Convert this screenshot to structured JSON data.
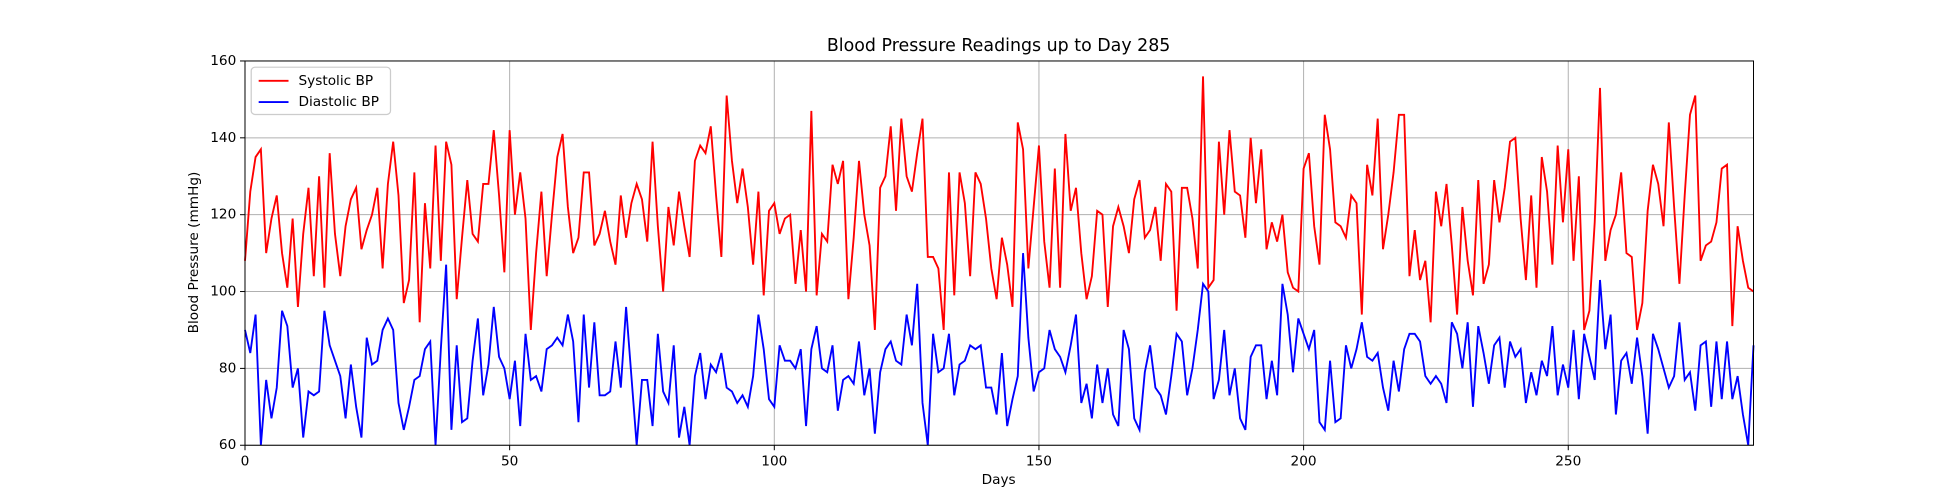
{
  "chart_data": {
    "type": "line",
    "title": "Blood Pressure Readings up to Day 285",
    "xlabel": "Days",
    "ylabel": "Blood Pressure (mmHg)",
    "x": [
      0,
      1,
      2,
      3,
      4,
      5,
      6,
      7,
      8,
      9,
      10,
      11,
      12,
      13,
      14,
      15,
      16,
      17,
      18,
      19,
      20,
      21,
      22,
      23,
      24,
      25,
      26,
      27,
      28,
      29,
      30,
      31,
      32,
      33,
      34,
      35,
      36,
      37,
      38,
      39,
      40,
      41,
      42,
      43,
      44,
      45,
      46,
      47,
      48,
      49,
      50,
      51,
      52,
      53,
      54,
      55,
      56,
      57,
      58,
      59,
      60,
      61,
      62,
      63,
      64,
      65,
      66,
      67,
      68,
      69,
      70,
      71,
      72,
      73,
      74,
      75,
      76,
      77,
      78,
      79,
      80,
      81,
      82,
      83,
      84,
      85,
      86,
      87,
      88,
      89,
      90,
      91,
      92,
      93,
      94,
      95,
      96,
      97,
      98,
      99,
      100,
      101,
      102,
      103,
      104,
      105,
      106,
      107,
      108,
      109,
      110,
      111,
      112,
      113,
      114,
      115,
      116,
      117,
      118,
      119,
      120,
      121,
      122,
      123,
      124,
      125,
      126,
      127,
      128,
      129,
      130,
      131,
      132,
      133,
      134,
      135,
      136,
      137,
      138,
      139,
      140,
      141,
      142,
      143,
      144,
      145,
      146,
      147,
      148,
      149,
      150,
      151,
      152,
      153,
      154,
      155,
      156,
      157,
      158,
      159,
      160,
      161,
      162,
      163,
      164,
      165,
      166,
      167,
      168,
      169,
      170,
      171,
      172,
      173,
      174,
      175,
      176,
      177,
      178,
      179,
      180,
      181,
      182,
      183,
      184,
      185,
      186,
      187,
      188,
      189,
      190,
      191,
      192,
      193,
      194,
      195,
      196,
      197,
      198,
      199,
      200,
      201,
      202,
      203,
      204,
      205,
      206,
      207,
      208,
      209,
      210,
      211,
      212,
      213,
      214,
      215,
      216,
      217,
      218,
      219,
      220,
      221,
      222,
      223,
      224,
      225,
      226,
      227,
      228,
      229,
      230,
      231,
      232,
      233,
      234,
      235,
      236,
      237,
      238,
      239,
      240,
      241,
      242,
      243,
      244,
      245,
      246,
      247,
      248,
      249,
      250,
      251,
      252,
      253,
      254,
      255,
      256,
      257,
      258,
      259,
      260,
      261,
      262,
      263,
      264,
      265,
      266,
      267,
      268,
      269,
      270,
      271,
      272,
      273,
      274,
      275,
      276,
      277,
      278,
      279,
      280,
      281,
      282,
      283,
      284,
      285
    ],
    "series": [
      {
        "name": "Systolic BP",
        "color": "#ff0000",
        "values": [
          108,
          126,
          135,
          137,
          110,
          119,
          125,
          110,
          101,
          119,
          96,
          115,
          127,
          104,
          130,
          101,
          136,
          115,
          104,
          117,
          124,
          127,
          111,
          116,
          120,
          127,
          106,
          128,
          139,
          125,
          97,
          103,
          131,
          92,
          123,
          106,
          138,
          108,
          139,
          133,
          98,
          114,
          129,
          115,
          113,
          128,
          128,
          142,
          125,
          105,
          142,
          120,
          131,
          119,
          90,
          110,
          126,
          104,
          120,
          135,
          141,
          122,
          110,
          114,
          131,
          131,
          112,
          115,
          121,
          113,
          107,
          125,
          114,
          123,
          128,
          124,
          113,
          139,
          117,
          100,
          122,
          112,
          126,
          117,
          109,
          134,
          138,
          136,
          143,
          125,
          109,
          151,
          134,
          123,
          132,
          122,
          107,
          126,
          99,
          121,
          123,
          115,
          119,
          120,
          102,
          116,
          100,
          147,
          99,
          115,
          113,
          133,
          128,
          134,
          98,
          114,
          134,
          120,
          112,
          90,
          127,
          130,
          143,
          121,
          145,
          130,
          126,
          136,
          145,
          109,
          109,
          106,
          90,
          131,
          99,
          131,
          123,
          104,
          131,
          128,
          119,
          106,
          98,
          114,
          107,
          96,
          144,
          137,
          106,
          122,
          138,
          113,
          101,
          132,
          101,
          141,
          121,
          127,
          110,
          98,
          104,
          121,
          120,
          96,
          117,
          122,
          117,
          110,
          124,
          129,
          114,
          116,
          122,
          108,
          128,
          126,
          95,
          127,
          127,
          119,
          106,
          156,
          101,
          103,
          139,
          120,
          142,
          126,
          125,
          114,
          140,
          123,
          137,
          111,
          118,
          113,
          120,
          105,
          101,
          100,
          132,
          136,
          117,
          107,
          146,
          137,
          118,
          117,
          114,
          125,
          123,
          94,
          133,
          125,
          145,
          111,
          120,
          131,
          146,
          146,
          104,
          116,
          103,
          108,
          92,
          126,
          117,
          128,
          112,
          94,
          122,
          108,
          99,
          129,
          102,
          107,
          129,
          118,
          127,
          139,
          140,
          119,
          103,
          125,
          101,
          135,
          126,
          107,
          138,
          118,
          137,
          108,
          130,
          90,
          95,
          118,
          153,
          108,
          116,
          120,
          131,
          110,
          109,
          90,
          97,
          121,
          133,
          128,
          117,
          144,
          122,
          102,
          125,
          146,
          151,
          108,
          112,
          113,
          118,
          132,
          133,
          91,
          117,
          108,
          101,
          100
        ]
      },
      {
        "name": "Diastolic BP",
        "color": "#0000ff",
        "values": [
          90,
          84,
          94,
          60,
          77,
          67,
          75,
          95,
          91,
          75,
          80,
          62,
          74,
          73,
          74,
          95,
          86,
          82,
          78,
          67,
          81,
          70,
          62,
          88,
          81,
          82,
          90,
          93,
          90,
          71,
          64,
          70,
          77,
          78,
          85,
          87,
          60,
          85,
          107,
          64,
          86,
          66,
          67,
          82,
          93,
          73,
          81,
          96,
          83,
          80,
          72,
          82,
          65,
          89,
          77,
          78,
          74,
          85,
          86,
          88,
          86,
          94,
          87,
          66,
          94,
          75,
          92,
          73,
          73,
          74,
          87,
          75,
          96,
          78,
          60,
          77,
          77,
          65,
          89,
          74,
          71,
          86,
          62,
          70,
          60,
          78,
          84,
          72,
          81,
          79,
          84,
          75,
          74,
          71,
          73,
          70,
          78,
          94,
          85,
          72,
          70,
          86,
          82,
          82,
          80,
          85,
          65,
          85,
          91,
          80,
          79,
          86,
          69,
          77,
          78,
          76,
          87,
          73,
          80,
          63,
          79,
          85,
          87,
          82,
          81,
          94,
          86,
          102,
          71,
          60,
          89,
          79,
          80,
          89,
          73,
          81,
          82,
          86,
          85,
          86,
          75,
          75,
          68,
          84,
          65,
          72,
          78,
          110,
          88,
          74,
          79,
          80,
          90,
          85,
          83,
          79,
          86,
          94,
          71,
          76,
          67,
          81,
          71,
          80,
          68,
          65,
          90,
          85,
          67,
          64,
          79,
          86,
          75,
          73,
          68,
          78,
          89,
          87,
          73,
          80,
          90,
          102,
          100,
          72,
          77,
          90,
          73,
          80,
          67,
          64,
          83,
          86,
          86,
          72,
          82,
          73,
          102,
          94,
          79,
          93,
          89,
          85,
          90,
          66,
          64,
          82,
          66,
          67,
          86,
          80,
          85,
          92,
          83,
          82,
          84,
          75,
          69,
          82,
          74,
          85,
          89,
          89,
          87,
          78,
          76,
          78,
          76,
          71,
          92,
          89,
          80,
          92,
          70,
          91,
          84,
          76,
          86,
          88,
          75,
          87,
          83,
          85,
          71,
          79,
          73,
          82,
          78,
          91,
          73,
          81,
          75,
          90,
          72,
          89,
          83,
          77,
          103,
          85,
          94,
          68,
          82,
          84,
          76,
          88,
          78,
          63,
          89,
          85,
          80,
          75,
          78,
          92,
          77,
          79,
          69,
          86,
          87,
          70,
          87,
          72,
          87,
          72,
          78,
          68,
          60,
          86
        ]
      }
    ],
    "xlim": [
      0,
      285
    ],
    "ylim": [
      60,
      160
    ],
    "xticks": [
      0,
      50,
      100,
      150,
      200,
      250
    ],
    "yticks": [
      60,
      80,
      100,
      120,
      140,
      160
    ],
    "grid": true,
    "legend": "upper left"
  }
}
